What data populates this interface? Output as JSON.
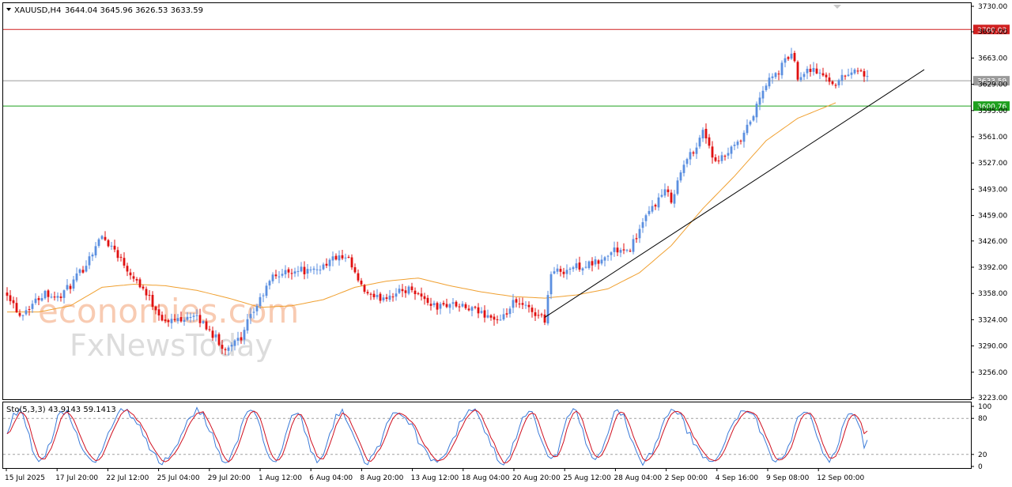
{
  "header": {
    "symbol": "XAUUSD,H4",
    "ohlc": "3644.04 3645.96 3626.53 3633.59"
  },
  "watermark": {
    "line1": "economies.com",
    "line2": "FxNewsToday"
  },
  "colors": {
    "bull": "#5b8fe0",
    "bear": "#e01010",
    "ma": "#f0a030",
    "resistance": "#d02020",
    "support": "#1ea01e",
    "current": "#9a9a9a",
    "trendline": "#000000",
    "stoch_main": "#3a7ad8",
    "stoch_signal": "#d01020"
  },
  "chart_data": {
    "type": "candlestick",
    "title": "",
    "y_ticks": [
      3730,
      3697,
      3663,
      3629,
      3595,
      3561,
      3527,
      3493,
      3459,
      3426,
      3392,
      3358,
      3324,
      3290,
      3256,
      3223
    ],
    "y_tick_labels": [
      "3730.00",
      "3697.00",
      "3663.00",
      "3629.00",
      "3595.00",
      "3561.00",
      "3527.00",
      "3493.00",
      "3459.00",
      "3426.00",
      "3392.00",
      "3358.00",
      "3324.00",
      "3290.00",
      "3256.00",
      "3223.00"
    ],
    "ylim": [
      3223,
      3730
    ],
    "x_labels": [
      "15 Jul 2025",
      "17 Jul 20:00",
      "22 Jul 12:00",
      "25 Jul 04:00",
      "29 Jul 20:00",
      "1 Aug 12:00",
      "6 Aug 04:00",
      "8 Aug 20:00",
      "13 Aug 12:00",
      "18 Aug 04:00",
      "20 Aug 20:00",
      "25 Aug 12:00",
      "28 Aug 04:00",
      "2 Sep 00:00",
      "4 Sep 16:00",
      "9 Sep 08:00",
      "12 Sep 00:00"
    ],
    "hlines": [
      {
        "value": 3700.03,
        "label": "3700.03",
        "color": "#d02020"
      },
      {
        "value": 3633.59,
        "label": "3633.59",
        "color": "#9a9a9a"
      },
      {
        "value": 3600.76,
        "label": "3600.76",
        "color": "#1ea01e"
      }
    ],
    "price_path": [
      [
        0,
        3360
      ],
      [
        4,
        3330
      ],
      [
        8,
        3345
      ],
      [
        12,
        3360
      ],
      [
        16,
        3352
      ],
      [
        20,
        3368
      ],
      [
        24,
        3390
      ],
      [
        28,
        3420
      ],
      [
        30,
        3432
      ],
      [
        34,
        3415
      ],
      [
        38,
        3390
      ],
      [
        42,
        3370
      ],
      [
        46,
        3345
      ],
      [
        50,
        3320
      ],
      [
        54,
        3325
      ],
      [
        58,
        3330
      ],
      [
        62,
        3320
      ],
      [
        66,
        3300
      ],
      [
        68,
        3285
      ],
      [
        70,
        3290
      ],
      [
        72,
        3300
      ],
      [
        74,
        3295
      ],
      [
        76,
        3320
      ],
      [
        80,
        3350
      ],
      [
        84,
        3380
      ],
      [
        88,
        3385
      ],
      [
        92,
        3390
      ],
      [
        96,
        3385
      ],
      [
        100,
        3395
      ],
      [
        104,
        3405
      ],
      [
        108,
        3400
      ],
      [
        112,
        3365
      ],
      [
        116,
        3350
      ],
      [
        120,
        3355
      ],
      [
        124,
        3360
      ],
      [
        128,
        3365
      ],
      [
        132,
        3350
      ],
      [
        136,
        3340
      ],
      [
        140,
        3345
      ],
      [
        144,
        3340
      ],
      [
        148,
        3335
      ],
      [
        152,
        3330
      ],
      [
        156,
        3320
      ],
      [
        160,
        3345
      ],
      [
        164,
        3340
      ],
      [
        168,
        3330
      ],
      [
        170,
        3325
      ],
      [
        172,
        3385
      ],
      [
        176,
        3388
      ],
      [
        180,
        3393
      ],
      [
        184,
        3395
      ],
      [
        188,
        3400
      ],
      [
        192,
        3415
      ],
      [
        196,
        3410
      ],
      [
        200,
        3440
      ],
      [
        204,
        3470
      ],
      [
        208,
        3490
      ],
      [
        210,
        3480
      ],
      [
        214,
        3525
      ],
      [
        218,
        3550
      ],
      [
        220,
        3570
      ],
      [
        222,
        3550
      ],
      [
        224,
        3525
      ],
      [
        228,
        3540
      ],
      [
        232,
        3555
      ],
      [
        236,
        3590
      ],
      [
        240,
        3630
      ],
      [
        244,
        3645
      ],
      [
        246,
        3660
      ],
      [
        248,
        3670
      ],
      [
        250,
        3640
      ],
      [
        254,
        3650
      ],
      [
        258,
        3640
      ],
      [
        262,
        3630
      ],
      [
        266,
        3645
      ],
      [
        270,
        3648
      ],
      [
        272,
        3635
      ]
    ],
    "ma_path": [
      [
        0,
        3334
      ],
      [
        10,
        3334
      ],
      [
        20,
        3342
      ],
      [
        30,
        3366
      ],
      [
        40,
        3370
      ],
      [
        50,
        3368
      ],
      [
        60,
        3362
      ],
      [
        70,
        3352
      ],
      [
        80,
        3340
      ],
      [
        90,
        3342
      ],
      [
        100,
        3350
      ],
      [
        110,
        3366
      ],
      [
        120,
        3374
      ],
      [
        130,
        3378
      ],
      [
        140,
        3368
      ],
      [
        150,
        3360
      ],
      [
        160,
        3354
      ],
      [
        170,
        3352
      ],
      [
        180,
        3356
      ],
      [
        190,
        3364
      ],
      [
        200,
        3385
      ],
      [
        210,
        3420
      ],
      [
        220,
        3468
      ],
      [
        230,
        3510
      ],
      [
        240,
        3556
      ],
      [
        250,
        3585
      ],
      [
        262,
        3605
      ]
    ],
    "trendline": {
      "start": [
        170,
        3327
      ],
      "end": [
        290,
        3648
      ]
    },
    "n_bars": 300,
    "stochastic": {
      "label": "Sto(5,3,3) 43.9143 59.1413",
      "k": 43.9143,
      "d": 59.1413,
      "y_ticks": [
        100,
        80,
        20,
        0
      ],
      "y_tick_labels": [
        "100",
        "80",
        "20",
        "0"
      ],
      "levels": [
        80,
        20
      ]
    }
  }
}
